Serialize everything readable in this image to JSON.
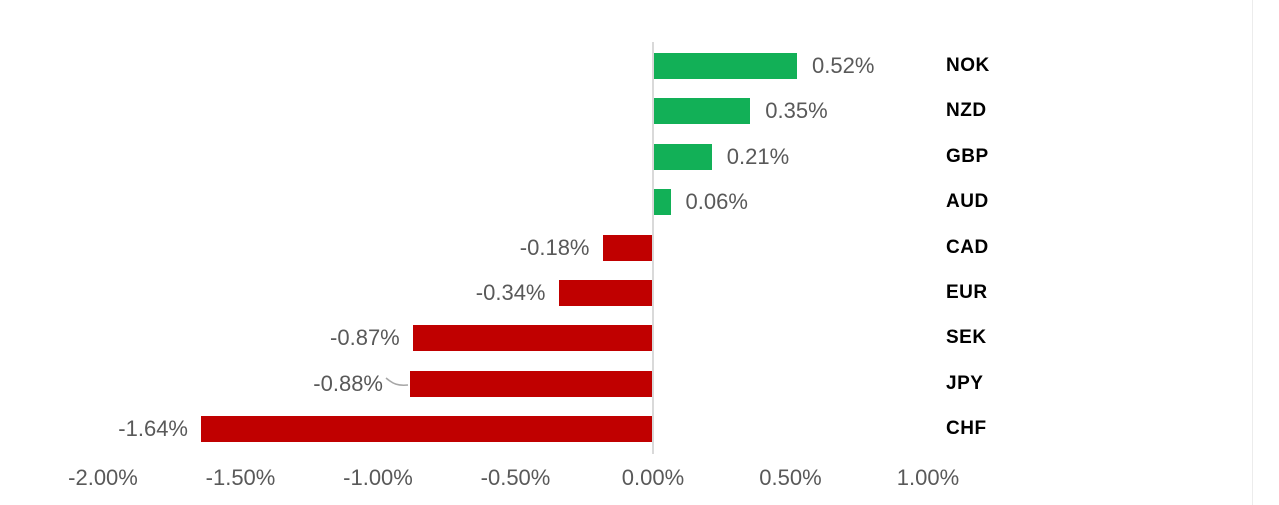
{
  "chart_data": {
    "type": "bar",
    "orientation": "horizontal",
    "title": "",
    "xlabel": "",
    "ylabel": "",
    "xlim": [
      -2.0,
      1.0
    ],
    "grid": false,
    "legend": false,
    "categories": [
      "NOK",
      "NZD",
      "GBP",
      "AUD",
      "CAD",
      "EUR",
      "SEK",
      "JPY",
      "CHF"
    ],
    "values": [
      0.52,
      0.35,
      0.21,
      0.06,
      -0.18,
      -0.34,
      -0.87,
      -0.88,
      -1.64
    ],
    "rows": [
      {
        "currency": "NOK",
        "value": 0.52,
        "label": "0.52%",
        "leader": false
      },
      {
        "currency": "NZD",
        "value": 0.35,
        "label": "0.35%",
        "leader": false
      },
      {
        "currency": "GBP",
        "value": 0.21,
        "label": "0.21%",
        "leader": false
      },
      {
        "currency": "AUD",
        "value": 0.06,
        "label": "0.06%",
        "leader": false
      },
      {
        "currency": "CAD",
        "value": -0.18,
        "label": "-0.18%",
        "leader": false
      },
      {
        "currency": "EUR",
        "value": -0.34,
        "label": "-0.34%",
        "leader": false
      },
      {
        "currency": "SEK",
        "value": -0.87,
        "label": "-0.87%",
        "leader": false
      },
      {
        "currency": "JPY",
        "value": -0.88,
        "label": "-0.88%",
        "leader": true
      },
      {
        "currency": "CHF",
        "value": -1.64,
        "label": "-1.64%",
        "leader": false
      }
    ],
    "x_ticks": [
      {
        "label": "-2.00%",
        "value": -2.0
      },
      {
        "label": "-1.50%",
        "value": -1.5
      },
      {
        "label": "-1.00%",
        "value": -1.0
      },
      {
        "label": "-0.50%",
        "value": -0.5
      },
      {
        "label": "0.00%",
        "value": 0.0
      },
      {
        "label": "0.50%",
        "value": 0.5
      },
      {
        "label": "1.00%",
        "value": 1.0
      }
    ],
    "colors": {
      "positive_bar": "#12b057",
      "negative_bar": "#c00000",
      "axis_line": "#d9d9d9",
      "value_text": "#595959",
      "tick_text": "#595959",
      "category_text": "#000000",
      "leader_line": "#a6a6a6"
    }
  }
}
